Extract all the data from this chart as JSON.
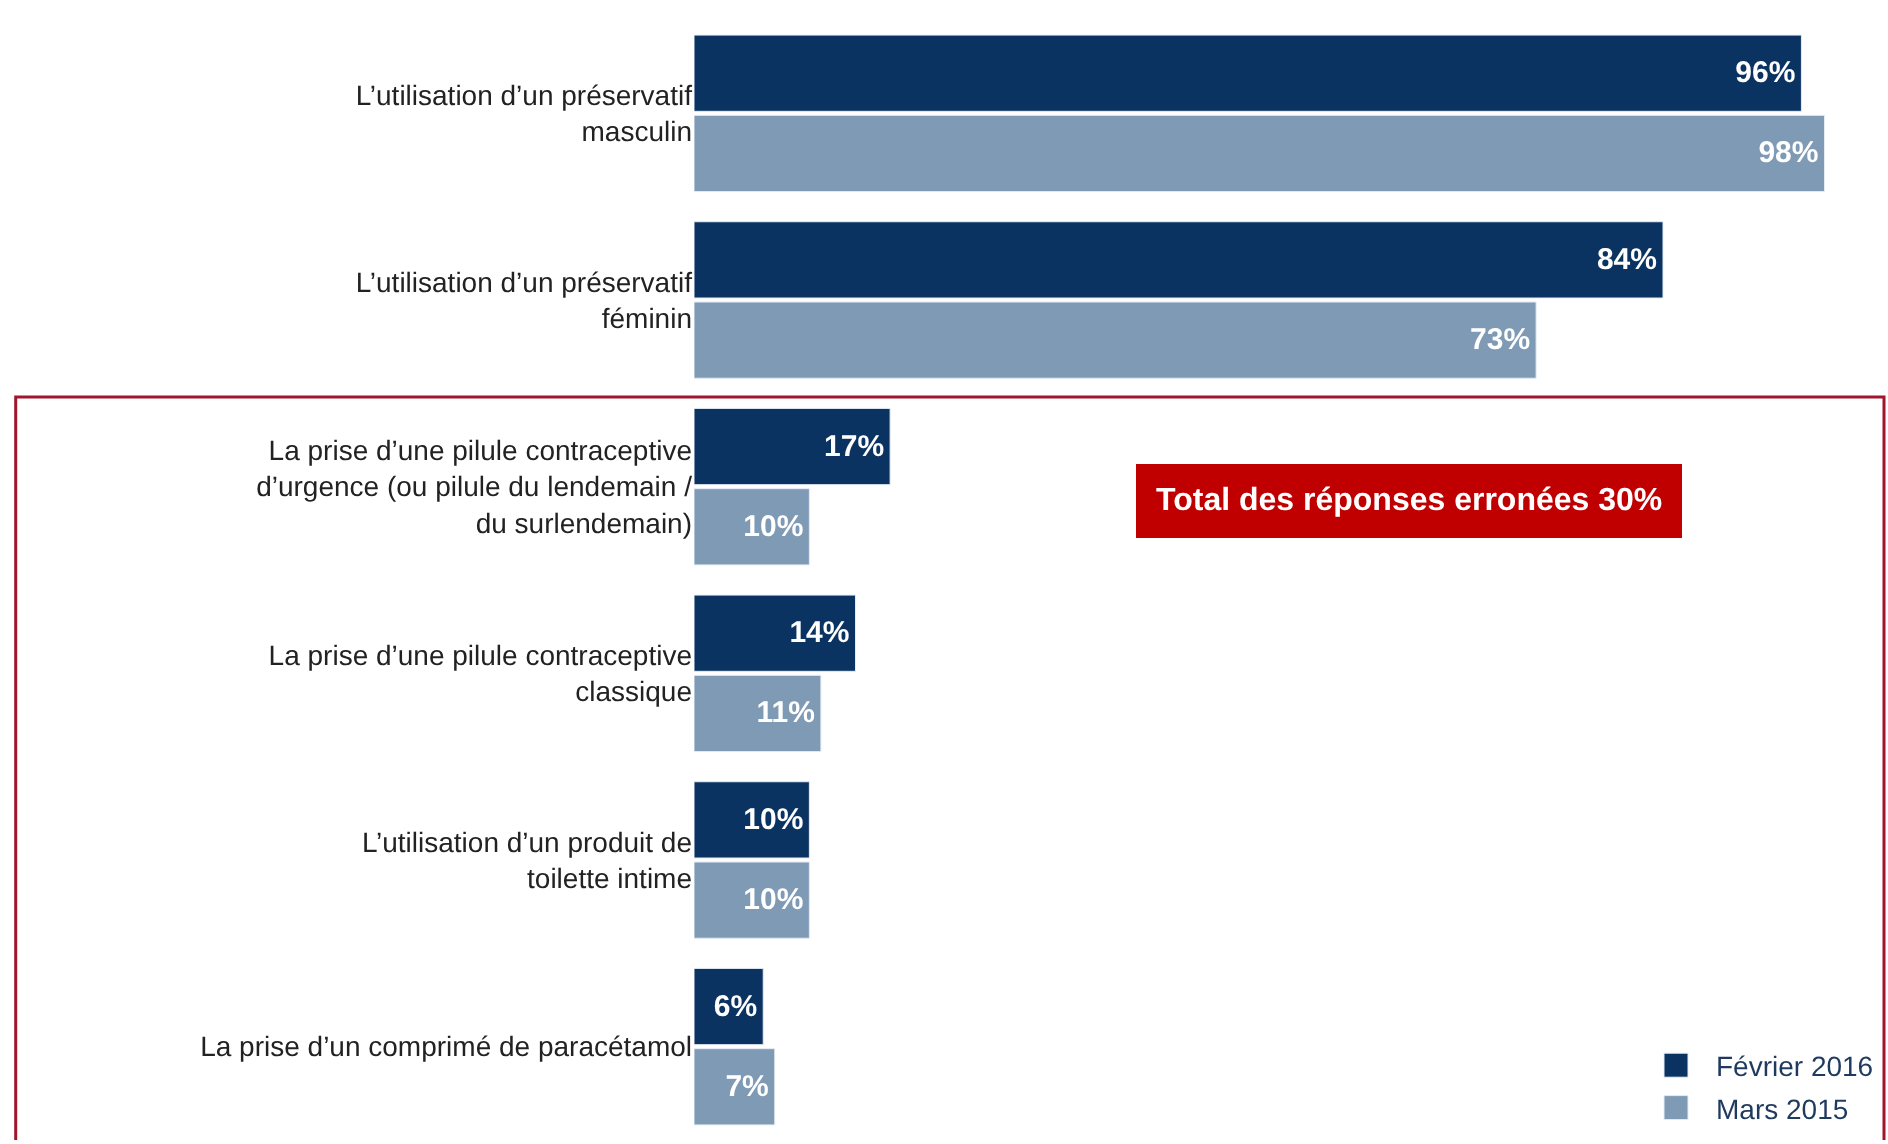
{
  "chart_data": {
    "type": "bar",
    "orientation": "horizontal",
    "categories": [
      "L’utilisation d’un préservatif masculin",
      "L’utilisation d’un préservatif féminin",
      "La prise d’une pilule contraceptive d’urgence (ou pilule du lendemain / du surlendemain)",
      "La prise d’une pilule contraceptive classique",
      "L’utilisation d’un produit de toilette intime",
      "La prise d’un comprimé de paracétamol"
    ],
    "series": [
      {
        "name": "Février 2016",
        "color": "#0b3362",
        "values": [
          96,
          84,
          17,
          14,
          10,
          6
        ],
        "value_labels": [
          "96%",
          "84%",
          "17%",
          "14%",
          "10%",
          "6%"
        ]
      },
      {
        "name": "Mars 2015",
        "color": "#7f9ab5",
        "values": [
          98,
          73,
          10,
          11,
          10,
          7
        ],
        "value_labels": [
          "98%",
          "73%",
          "10%",
          "11%",
          "10%",
          "7%"
        ]
      }
    ],
    "tick_labels": "y",
    "legend": "bottom right",
    "grid": false,
    "annotations": [
      "Total des réponses erronées 30%"
    ]
  }
}
